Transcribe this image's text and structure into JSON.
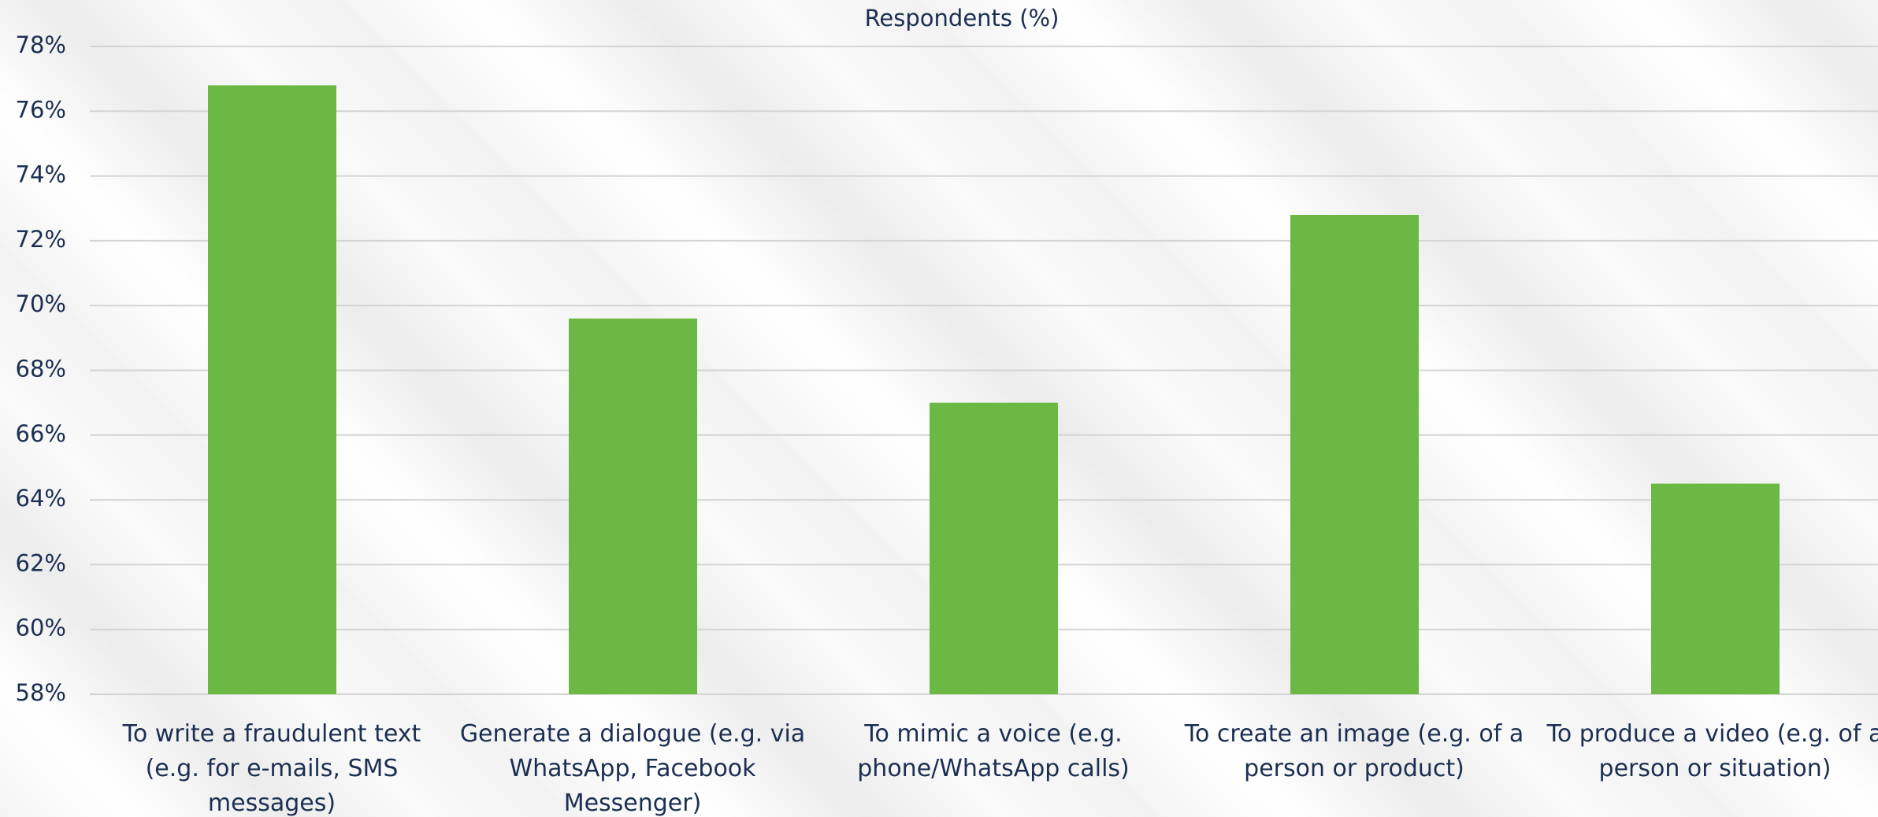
{
  "chart_data": {
    "type": "bar",
    "title": "Respondents (%)",
    "categories": [
      "To write a fraudulent text (e.g. for e-mails, SMS messages)",
      "Generate a dialogue (e.g. via WhatsApp, Facebook Messenger)",
      "To mimic a voice (e.g. phone/WhatsApp calls)",
      "To create an image (e.g. of a person or product)",
      "To produce a video (e.g. of a person or situation)"
    ],
    "values": [
      76.8,
      69.6,
      67.0,
      72.8,
      64.5
    ],
    "color": "#6bb944",
    "ylim": [
      58,
      78
    ],
    "yticks": [
      {
        "value": 58,
        "label": "58%"
      },
      {
        "value": 60,
        "label": "60%"
      },
      {
        "value": 62,
        "label": "62%"
      },
      {
        "value": 64,
        "label": "64%"
      },
      {
        "value": 66,
        "label": "66%"
      },
      {
        "value": 68,
        "label": "68%"
      },
      {
        "value": 70,
        "label": "70%"
      },
      {
        "value": 72,
        "label": "72%"
      },
      {
        "value": 74,
        "label": "74%"
      },
      {
        "value": 76,
        "label": "76%"
      },
      {
        "value": 78,
        "label": "78%"
      }
    ],
    "grid": true
  }
}
